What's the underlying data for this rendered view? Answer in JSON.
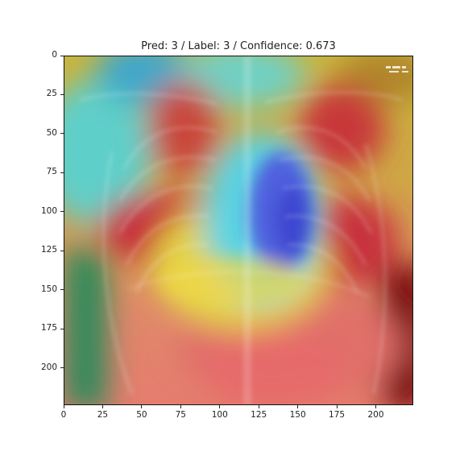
{
  "title": "Pred: 3 / Label: 3 / Confidence: 0.673",
  "chart_data": {
    "type": "heatmap",
    "title": "Pred: 3 / Label: 3 / Confidence: 0.673",
    "xlim": [
      0,
      224
    ],
    "ylim": [
      224,
      0
    ],
    "x_ticks": [
      "0",
      "25",
      "50",
      "75",
      "100",
      "125",
      "150",
      "175",
      "200"
    ],
    "y_ticks": [
      "0",
      "25",
      "50",
      "75",
      "100",
      "125",
      "150",
      "175",
      "200"
    ],
    "x_tick_values": [
      0,
      25,
      50,
      75,
      100,
      125,
      150,
      175,
      200
    ],
    "y_tick_values": [
      0,
      25,
      50,
      75,
      100,
      125,
      150,
      175,
      200
    ],
    "grid": false,
    "legend": "none",
    "image": "chest x-ray with Grad-CAM heatmap overlay (jet colormap)"
  },
  "colors": {
    "red": "#d94a3a",
    "yellow": "#d8c13a",
    "cyan": "#56cbd2",
    "blue": "#4457d8",
    "green": "#2f8a5a"
  }
}
